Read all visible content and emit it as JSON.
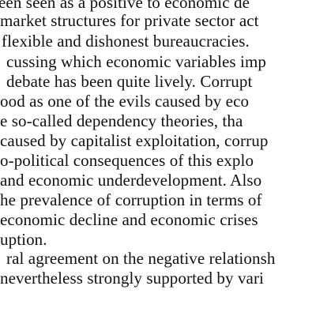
{
  "document": {
    "lines": [
      "een seen as a positive to economic de",
      "market structures for private sector act",
      "flexible and dishonest bureaucracies.",
      "cussing which economic variables imp",
      "debate has been quite lively. Corrupt",
      "ood as one of the evils caused by eco",
      "e so-called dependency theories, tha",
      "caused by capitalist exploitation, corrup",
      "o-political consequences of this explo",
      "and economic underdevelopment. Also",
      "he prevalence of corruption in terms of",
      "economic decline and economic crises",
      "uption.",
      "ral agreement on the negative relationsh",
      "nevertheless strongly supported by vari"
    ]
  }
}
